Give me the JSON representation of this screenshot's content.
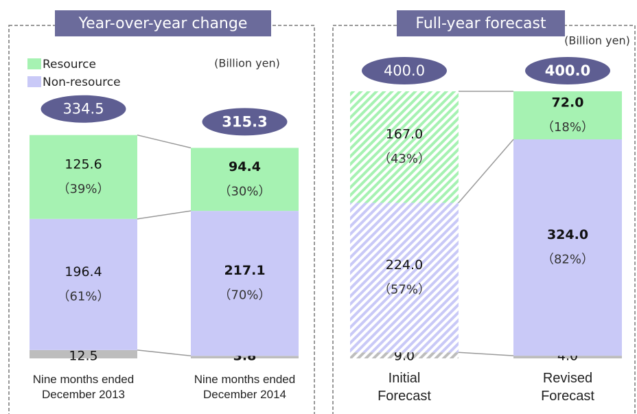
{
  "chart_data": [
    {
      "type": "bar",
      "stacked": true,
      "title": "Year-over-year change",
      "unit": "(Billion yen)",
      "legend": true,
      "categories": [
        "Nine months ended December 2013",
        "Nine months ended December 2014"
      ],
      "totals": [
        334.5,
        315.3
      ],
      "series": [
        {
          "color": "#bdbdbd",
          "values": [
            12.5,
            3.8
          ]
        },
        {
          "name": "Non-resource",
          "color": "#c9c9f7",
          "values": [
            196.4,
            217.1
          ],
          "percent_labels": [
            "（61%）",
            "（70%）"
          ]
        },
        {
          "name": "Resource",
          "color": "#a6f2b2",
          "values": [
            125.6,
            94.4
          ],
          "percent_labels": [
            "（39%）",
            "（30%）"
          ]
        }
      ]
    },
    {
      "type": "bar",
      "stacked": true,
      "title": "Full-year forecast",
      "unit": "(Billion yen)",
      "legend": false,
      "categories": [
        "Initial Forecast",
        "Revised Forecast"
      ],
      "patterns": [
        "hatched",
        "solid"
      ],
      "totals": [
        400.0,
        400.0
      ],
      "series": [
        {
          "color": "#bdbdbd",
          "values": [
            9.0,
            4.0
          ]
        },
        {
          "color": "#c9c9f7",
          "values": [
            224.0,
            324.0
          ],
          "percent_labels": [
            "（57%）",
            "（82%）"
          ]
        },
        {
          "color": "#a6f2b2",
          "values": [
            167.0,
            72.0
          ],
          "percent_labels": [
            "（43%）",
            "（18%）"
          ]
        }
      ]
    }
  ]
}
